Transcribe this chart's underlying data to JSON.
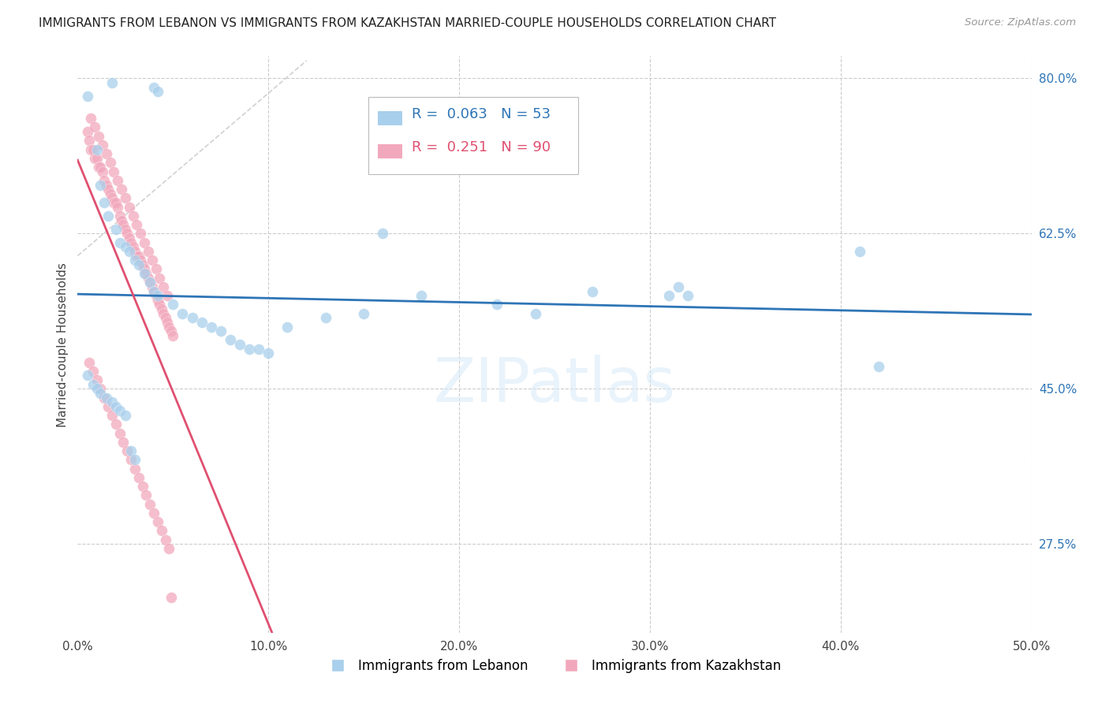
{
  "title": "IMMIGRANTS FROM LEBANON VS IMMIGRANTS FROM KAZAKHSTAN MARRIED-COUPLE HOUSEHOLDS CORRELATION CHART",
  "source": "Source: ZipAtlas.com",
  "ylabel_label": "Married-couple Households",
  "xlabel_lb": "Immigrants from Lebanon",
  "xlabel_kz": "Immigrants from Kazakhstan",
  "legend_lb_R": 0.063,
  "legend_lb_N": 53,
  "legend_kz_R": 0.251,
  "legend_kz_N": 90,
  "xmin": 0.0,
  "xmax": 0.5,
  "ymin": 0.175,
  "ymax": 0.825,
  "color_lb": "#A8CFEC",
  "color_kz": "#F2A8BC",
  "color_lb_line": "#2E75B6",
  "color_kz_line": "#E05070",
  "lb_x": [
    0.018,
    0.04,
    0.042,
    0.005,
    0.01,
    0.012,
    0.014,
    0.016,
    0.02,
    0.022,
    0.025,
    0.027,
    0.03,
    0.032,
    0.035,
    0.038,
    0.04,
    0.042,
    0.05,
    0.055,
    0.06,
    0.065,
    0.07,
    0.075,
    0.08,
    0.085,
    0.09,
    0.095,
    0.1,
    0.11,
    0.13,
    0.15,
    0.16,
    0.18,
    0.22,
    0.24,
    0.27,
    0.31,
    0.315,
    0.32,
    0.41,
    0.42,
    0.005,
    0.008,
    0.01,
    0.012,
    0.015,
    0.018,
    0.02,
    0.022,
    0.025,
    0.028,
    0.03
  ],
  "lb_y": [
    0.795,
    0.79,
    0.785,
    0.78,
    0.72,
    0.68,
    0.66,
    0.645,
    0.63,
    0.615,
    0.61,
    0.605,
    0.595,
    0.59,
    0.58,
    0.57,
    0.56,
    0.555,
    0.545,
    0.535,
    0.53,
    0.525,
    0.52,
    0.515,
    0.505,
    0.5,
    0.495,
    0.495,
    0.49,
    0.52,
    0.53,
    0.535,
    0.625,
    0.555,
    0.545,
    0.535,
    0.56,
    0.555,
    0.565,
    0.555,
    0.605,
    0.475,
    0.465,
    0.455,
    0.45,
    0.445,
    0.44,
    0.435,
    0.43,
    0.425,
    0.42,
    0.38,
    0.37
  ],
  "kz_x": [
    0.005,
    0.006,
    0.007,
    0.008,
    0.009,
    0.01,
    0.011,
    0.012,
    0.013,
    0.014,
    0.015,
    0.016,
    0.017,
    0.018,
    0.019,
    0.02,
    0.021,
    0.022,
    0.023,
    0.024,
    0.025,
    0.026,
    0.027,
    0.028,
    0.029,
    0.03,
    0.031,
    0.032,
    0.033,
    0.034,
    0.035,
    0.036,
    0.037,
    0.038,
    0.039,
    0.04,
    0.041,
    0.042,
    0.043,
    0.044,
    0.045,
    0.046,
    0.047,
    0.048,
    0.049,
    0.05,
    0.006,
    0.008,
    0.01,
    0.012,
    0.014,
    0.016,
    0.018,
    0.02,
    0.022,
    0.024,
    0.026,
    0.028,
    0.03,
    0.032,
    0.034,
    0.036,
    0.038,
    0.04,
    0.042,
    0.044,
    0.046,
    0.048,
    0.007,
    0.009,
    0.011,
    0.013,
    0.015,
    0.017,
    0.019,
    0.021,
    0.023,
    0.025,
    0.027,
    0.029,
    0.031,
    0.033,
    0.035,
    0.037,
    0.039,
    0.041,
    0.043,
    0.045,
    0.047,
    0.049
  ],
  "kz_y": [
    0.74,
    0.73,
    0.72,
    0.72,
    0.71,
    0.71,
    0.7,
    0.7,
    0.695,
    0.685,
    0.68,
    0.675,
    0.67,
    0.665,
    0.66,
    0.66,
    0.655,
    0.645,
    0.64,
    0.635,
    0.63,
    0.625,
    0.62,
    0.615,
    0.61,
    0.605,
    0.6,
    0.6,
    0.595,
    0.59,
    0.585,
    0.58,
    0.575,
    0.57,
    0.565,
    0.56,
    0.555,
    0.55,
    0.545,
    0.54,
    0.535,
    0.53,
    0.525,
    0.52,
    0.515,
    0.51,
    0.48,
    0.47,
    0.46,
    0.45,
    0.44,
    0.43,
    0.42,
    0.41,
    0.4,
    0.39,
    0.38,
    0.37,
    0.36,
    0.35,
    0.34,
    0.33,
    0.32,
    0.31,
    0.3,
    0.29,
    0.28,
    0.27,
    0.755,
    0.745,
    0.735,
    0.725,
    0.715,
    0.705,
    0.695,
    0.685,
    0.675,
    0.665,
    0.655,
    0.645,
    0.635,
    0.625,
    0.615,
    0.605,
    0.595,
    0.585,
    0.575,
    0.565,
    0.555,
    0.215
  ]
}
